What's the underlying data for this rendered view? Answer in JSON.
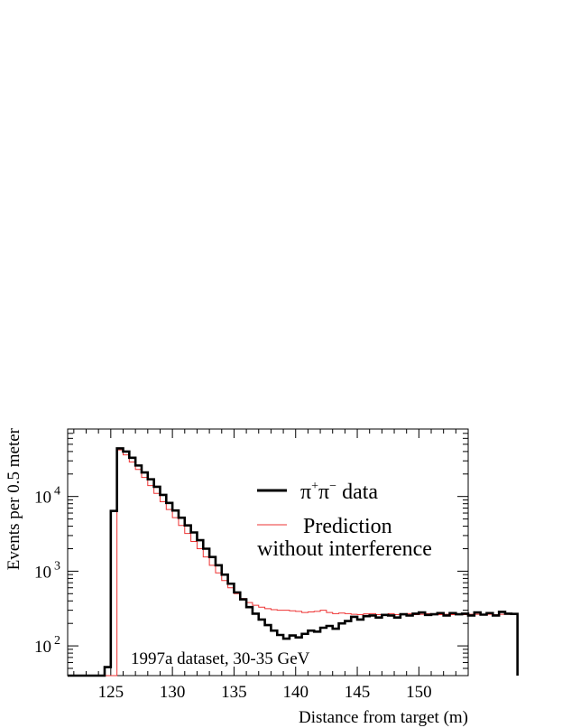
{
  "chart_data": {
    "type": "step",
    "title": "",
    "xlabel": "Distance from target (m)",
    "ylabel": "Events per 0.5 meter",
    "annotation": "1997a dataset, 30-35 GeV",
    "xlim": [
      121.5,
      154
    ],
    "ylim": [
      40,
      80000
    ],
    "y_scale": "log",
    "x_ticks": [
      125,
      130,
      135,
      140,
      145,
      150
    ],
    "y_ticks": [
      {
        "value": 100,
        "base": "10",
        "exp": "2"
      },
      {
        "value": 1000,
        "base": "10",
        "exp": "3"
      },
      {
        "value": 10000,
        "base": "10",
        "exp": "4"
      }
    ],
    "grid": false,
    "legend_position": "top-right",
    "bin_width": 0.5,
    "series": [
      {
        "name": "π⁺π⁻ data",
        "label_parts": [
          "π",
          "+",
          "π",
          "−",
          " data"
        ],
        "color": "#000000",
        "x_start": 121.5,
        "values": [
          40,
          40,
          40,
          40,
          40,
          40,
          52,
          6400,
          44000,
          40000,
          33000,
          26000,
          21000,
          17000,
          13500,
          10500,
          8200,
          6500,
          5200,
          4100,
          3300,
          2600,
          2000,
          1550,
          1200,
          900,
          680,
          520,
          420,
          330,
          270,
          225,
          190,
          160,
          140,
          125,
          138,
          130,
          145,
          160,
          155,
          175,
          185,
          170,
          200,
          215,
          245,
          225,
          250,
          255,
          240,
          260,
          255,
          240,
          265,
          255,
          270,
          280,
          260,
          265,
          275,
          255,
          275,
          265,
          270,
          255,
          280,
          262,
          275,
          255,
          285,
          270,
          268
        ]
      },
      {
        "name": "Prediction without interference",
        "label_lines": [
          "Prediction",
          "without interference"
        ],
        "color": "#ee3333",
        "x_start": 121.5,
        "values": [
          40,
          40,
          40,
          40,
          40,
          40,
          40,
          40,
          42000,
          36000,
          29000,
          23000,
          18000,
          14000,
          11000,
          8500,
          6700,
          5200,
          4100,
          3200,
          2500,
          2000,
          1550,
          1200,
          950,
          750,
          600,
          500,
          430,
          380,
          350,
          330,
          315,
          305,
          300,
          300,
          295,
          290,
          280,
          285,
          290,
          300,
          280,
          270,
          275,
          270,
          265,
          262,
          268,
          270,
          262,
          258,
          270,
          262,
          265,
          270,
          262,
          265,
          270,
          262,
          262,
          265,
          262,
          268,
          262,
          265,
          265,
          262,
          265,
          262,
          265,
          265,
          265
        ]
      }
    ]
  }
}
